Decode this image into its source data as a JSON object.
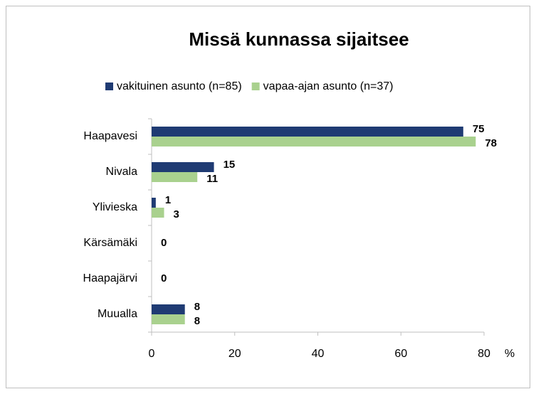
{
  "chart_data": {
    "type": "hbar",
    "title": "Missä kunnassa sijaitsee",
    "categories": [
      "Haapavesi",
      "Nivala",
      "Ylivieska",
      "Kärsämäki",
      "Haapajärvi",
      "Muualla"
    ],
    "series": [
      {
        "name": "vakituinen asunto (n=85)",
        "color": "#1f3b73",
        "values": [
          75,
          15,
          1,
          0,
          0,
          8
        ]
      },
      {
        "name": "vapaa-ajan asunto (n=37)",
        "color": "#a9d18e",
        "values": [
          78,
          11,
          3,
          null,
          null,
          8
        ]
      }
    ],
    "xlim": [
      0,
      80
    ],
    "xticks": [
      0,
      20,
      40,
      60,
      80
    ],
    "x_label": "%",
    "grid": false,
    "legend": "top"
  }
}
